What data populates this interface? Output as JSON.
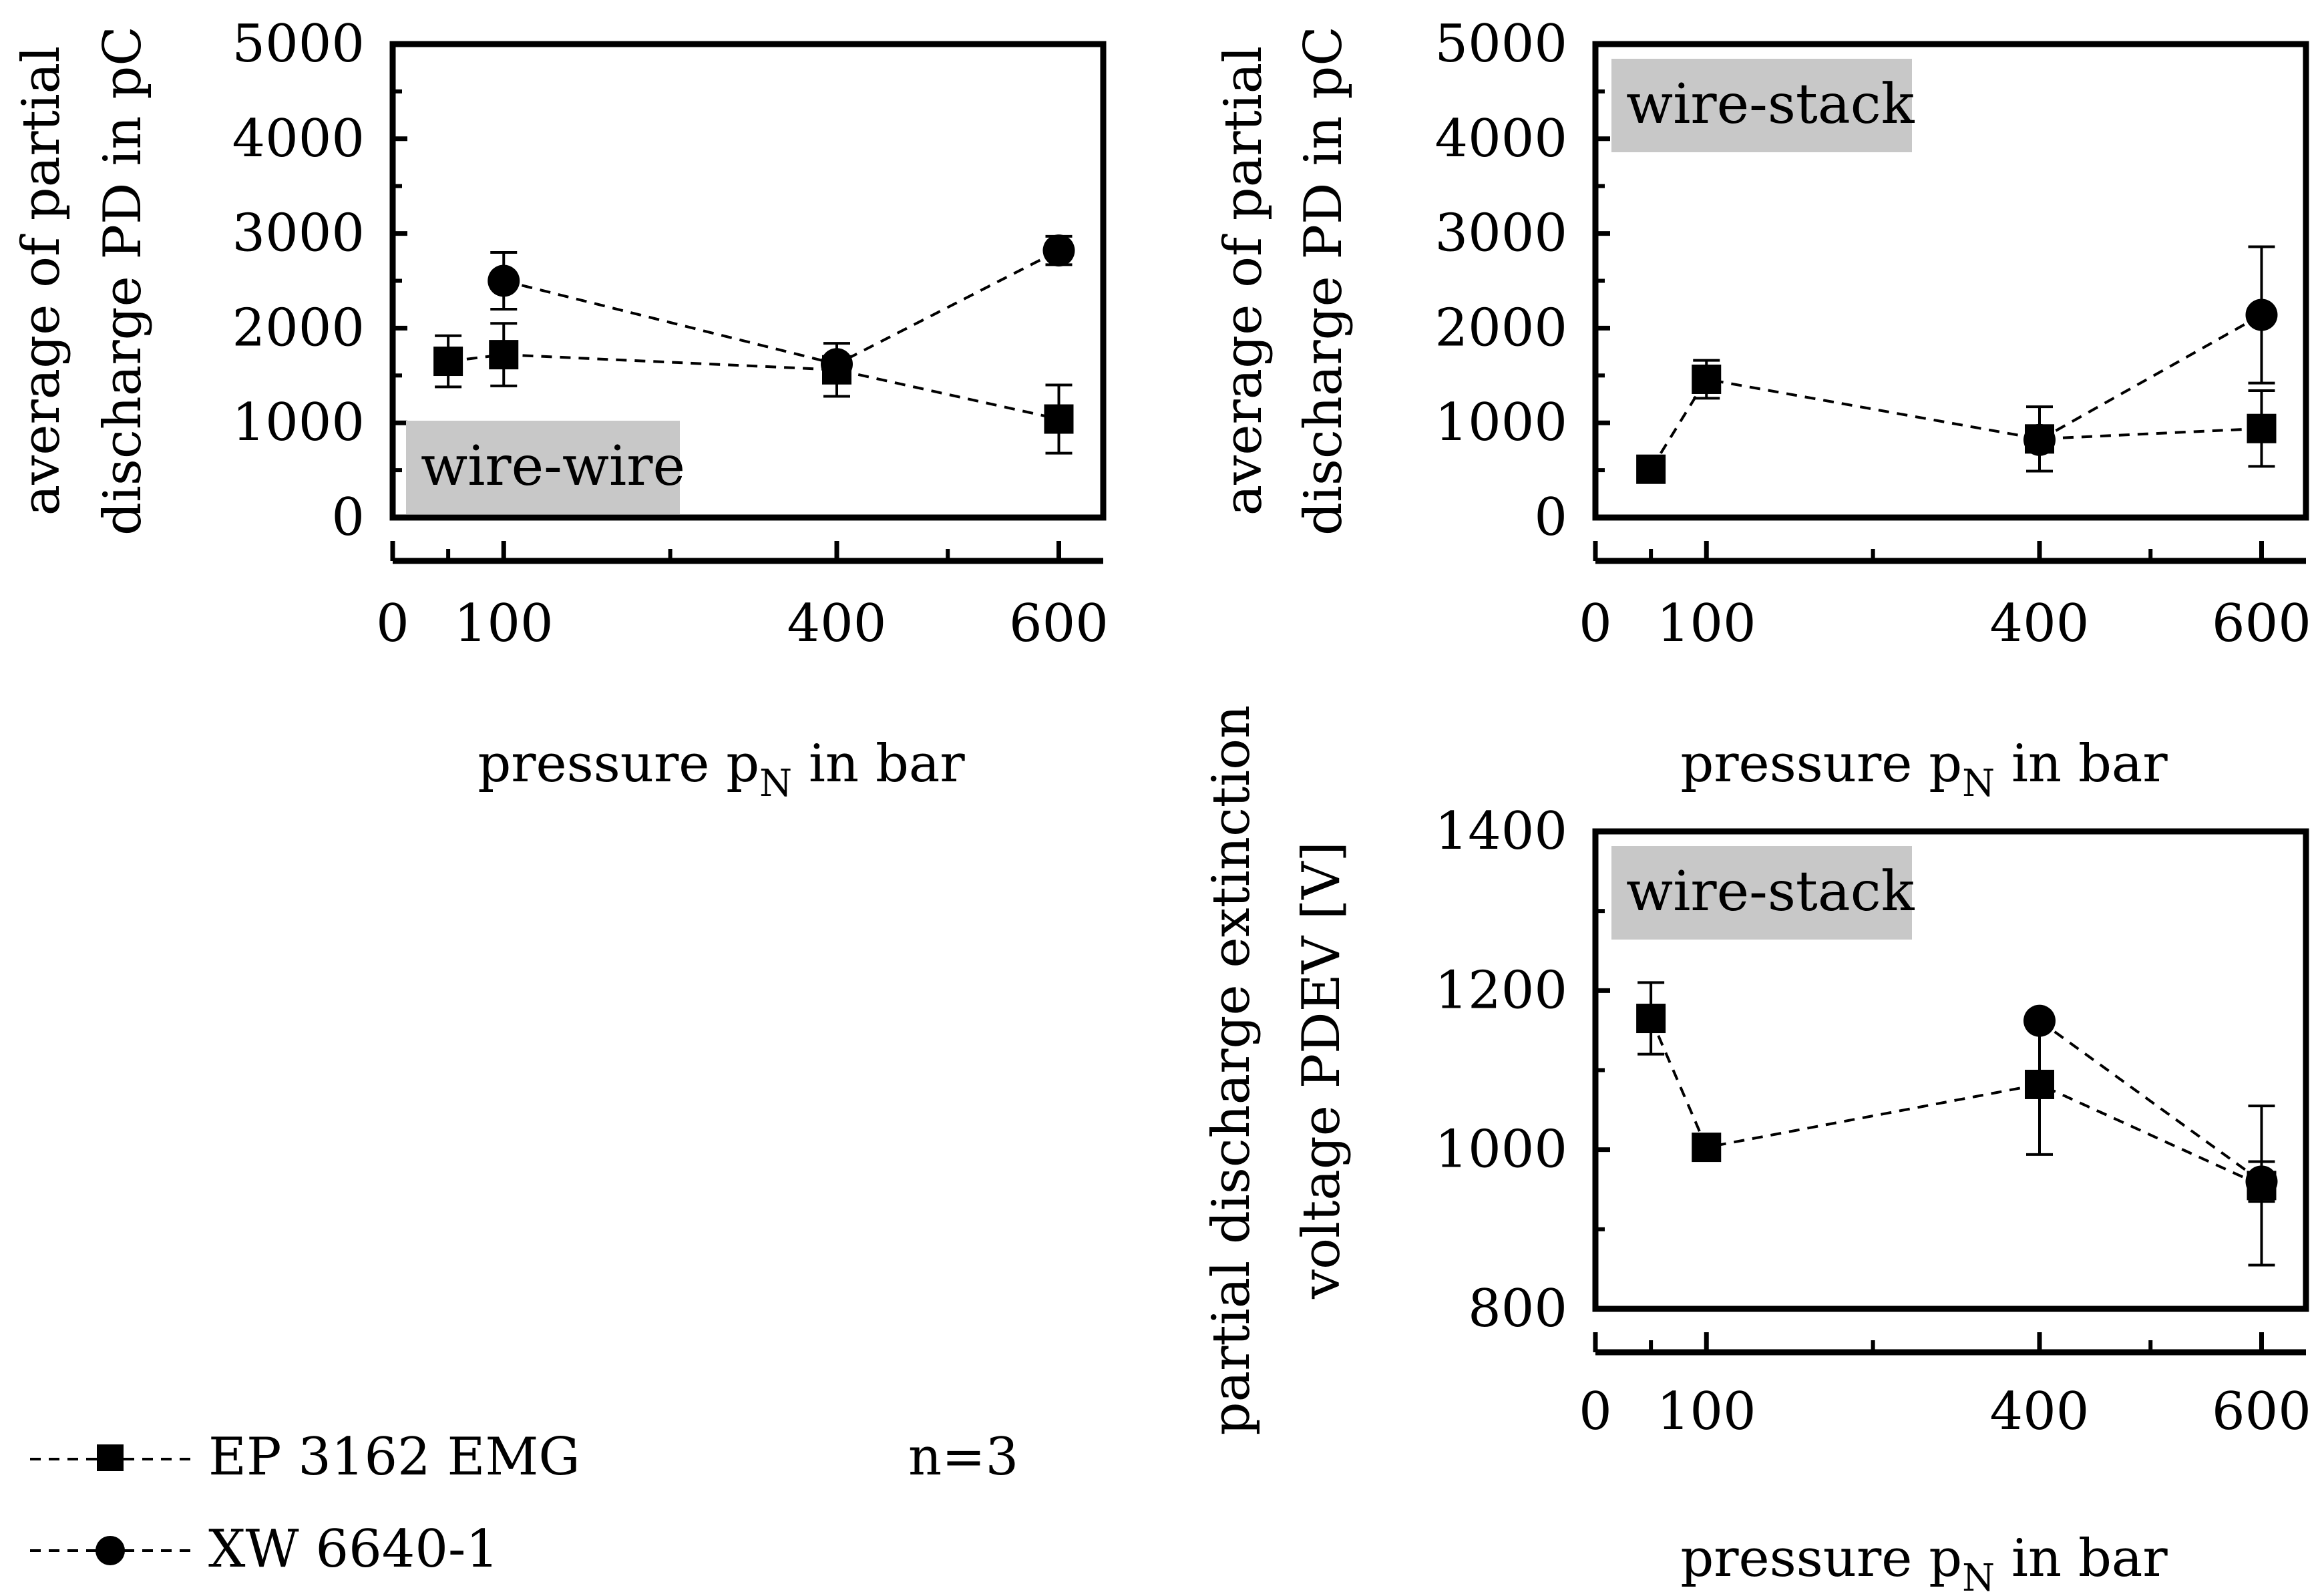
{
  "chart_data": [
    {
      "id": "wire-wire-avg-pd",
      "type": "scatter",
      "box_label": "wire-wire",
      "box_label_position": "bottom-left",
      "xlabel": "pressure p",
      "xlabel_sub": "N",
      "xlabel_suffix": " in bar",
      "ylabel_lines": [
        "average of partial",
        "discharge PD in pC"
      ],
      "xlim": [
        0,
        640
      ],
      "ylim": [
        0,
        5000
      ],
      "xticks": [
        0,
        100,
        400,
        600
      ],
      "xticks_minor": [
        50,
        250,
        500
      ],
      "yticks": [
        0,
        1000,
        2000,
        3000,
        4000,
        5000
      ],
      "series": [
        {
          "name": "EP 3162 EMG",
          "marker": "square",
          "x": [
            50,
            100,
            400,
            600
          ],
          "y": [
            1650,
            1720,
            1560,
            1040
          ],
          "err": [
            270,
            330,
            280,
            360
          ]
        },
        {
          "name": "XW 6640-1",
          "marker": "circle",
          "x": [
            100,
            400,
            600
          ],
          "y": [
            2500,
            1620,
            2820
          ],
          "err": [
            300,
            0,
            150
          ]
        }
      ]
    },
    {
      "id": "wire-stack-avg-pd",
      "type": "scatter",
      "box_label": "wire-stack",
      "box_label_position": "top-left",
      "xlabel": "pressure p",
      "xlabel_sub": "N",
      "xlabel_suffix": " in bar",
      "ylabel_lines": [
        "average of partial",
        "discharge PD in pC"
      ],
      "xlim": [
        0,
        640
      ],
      "ylim": [
        0,
        5000
      ],
      "xticks": [
        0,
        100,
        400,
        600
      ],
      "xticks_minor": [
        50,
        250,
        500
      ],
      "yticks": [
        0,
        1000,
        2000,
        3000,
        4000,
        5000
      ],
      "series": [
        {
          "name": "EP 3162 EMG",
          "marker": "square",
          "x": [
            50,
            100,
            400,
            600
          ],
          "y": [
            510,
            1460,
            830,
            940
          ],
          "err": [
            0,
            200,
            340,
            400
          ]
        },
        {
          "name": "XW 6640-1",
          "marker": "circle",
          "x": [
            400,
            600
          ],
          "y": [
            820,
            2140
          ],
          "err": [
            0,
            720
          ]
        }
      ]
    },
    {
      "id": "wire-stack-pdev",
      "type": "scatter",
      "box_label": "wire-stack",
      "box_label_position": "top-left",
      "xlabel": "pressure p",
      "xlabel_sub": "N",
      "xlabel_suffix": " in bar",
      "ylabel_lines": [
        "partial discharge extinction",
        "voltage PDEV [V]"
      ],
      "xlim": [
        0,
        640
      ],
      "ylim": [
        800,
        1400
      ],
      "xticks": [
        0,
        100,
        400,
        600
      ],
      "xticks_minor": [
        50,
        250,
        500
      ],
      "yticks": [
        800,
        1000,
        1200,
        1400
      ],
      "yticks_minor": [
        900,
        1100,
        1300
      ],
      "series": [
        {
          "name": "EP 3162 EMG",
          "marker": "square",
          "x": [
            50,
            100,
            400,
            600
          ],
          "y": [
            1165,
            1003,
            1082,
            955
          ],
          "err": [
            45,
            0,
            88,
            100
          ]
        },
        {
          "name": "XW 6640-1",
          "marker": "circle",
          "x": [
            400,
            600
          ],
          "y": [
            1162,
            960
          ],
          "err": [
            0,
            25
          ]
        }
      ]
    }
  ],
  "legend": {
    "items": [
      {
        "label": "EP 3162 EMG",
        "marker": "square"
      },
      {
        "label": "XW 6640-1",
        "marker": "circle"
      }
    ],
    "note": "n=3"
  }
}
